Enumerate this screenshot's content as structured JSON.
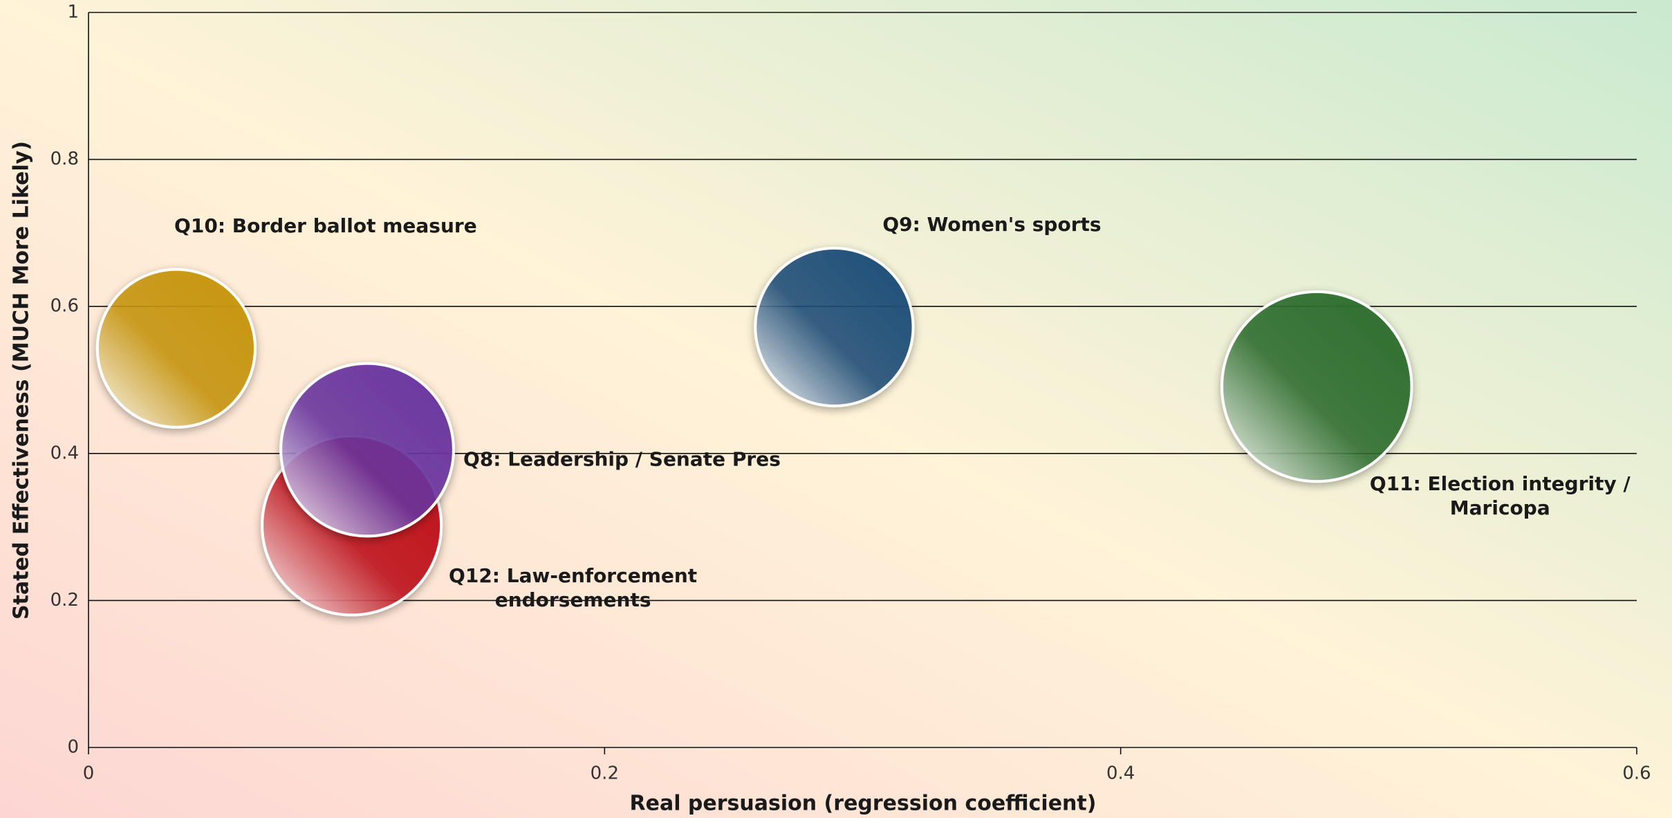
{
  "chart_data": {
    "type": "bubble",
    "x_label": "Real persuasion (regression coefficient)",
    "y_label": "Stated Effectiveness (MUCH More Likely)",
    "xlim": [
      0,
      0.6
    ],
    "xticks": [
      0,
      0.2,
      0.4,
      0.6
    ],
    "ylim": [
      0,
      1
    ],
    "yticks": [
      0,
      0.2,
      0.4,
      0.6,
      0.8,
      1
    ],
    "grid": true,
    "points": [
      {
        "label": [
          "Q10: Border ballot measure"
        ],
        "x": 0.034,
        "y": 0.543,
        "size": 74,
        "color": "#c8960c"
      },
      {
        "label": [
          "Q12: Law-enforcement",
          "endorsements"
        ],
        "x": 0.102,
        "y": 0.302,
        "size": 84,
        "color": "#c0101a"
      },
      {
        "label": [
          "Q8: Leadership / Senate Pres"
        ],
        "x": 0.108,
        "y": 0.405,
        "size": 81,
        "color": "#6a35a0"
      },
      {
        "label": [
          "Q9: Women's sports"
        ],
        "x": 0.289,
        "y": 0.572,
        "size": 74,
        "color": "#1f4e79"
      },
      {
        "label": [
          "Q11: Election integrity /",
          "Maricopa"
        ],
        "x": 0.476,
        "y": 0.491,
        "size": 89,
        "color": "#2e6e2e"
      }
    ]
  }
}
